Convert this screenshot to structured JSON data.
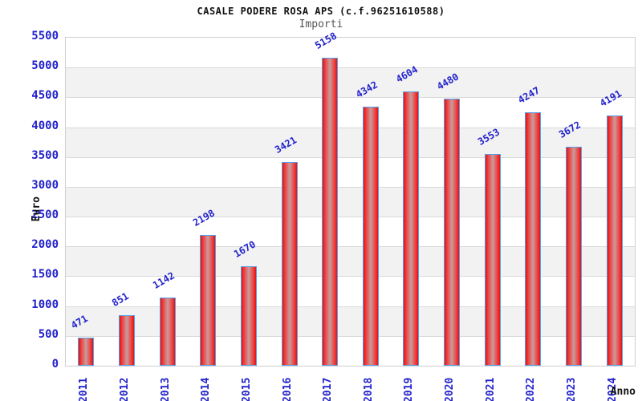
{
  "title": "CASALE PODERE ROSA APS (c.f.96251610588)",
  "subtitle": "Importi",
  "chart_data": {
    "type": "bar",
    "title": "CASALE PODERE ROSA APS (c.f.96251610588)",
    "subtitle": "Importi",
    "xlabel": "Anno",
    "ylabel": "Euro",
    "categories": [
      "2011",
      "2012",
      "2013",
      "2014",
      "2015",
      "2016",
      "2017",
      "2018",
      "2019",
      "2020",
      "2021",
      "2022",
      "2023",
      "2024"
    ],
    "values": [
      471,
      851,
      1142,
      2198,
      1670,
      3421,
      5158,
      4342,
      4604,
      4480,
      3553,
      4247,
      3672,
      4191
    ],
    "ylim": [
      0,
      5500
    ],
    "ytick_step": 500,
    "grid": true,
    "legend": "none",
    "colors": {
      "bar_edge": "#55a0e6",
      "bar_red": "#e31212",
      "bar_mid_red": "#ee4040",
      "bar_center": "#c99c9c",
      "tick_label": "#2222cc",
      "value_label": "#2222cc",
      "grid_line": "#d9d9d9",
      "band_gray": "#f2f2f2",
      "band_white": "#ffffff"
    }
  }
}
